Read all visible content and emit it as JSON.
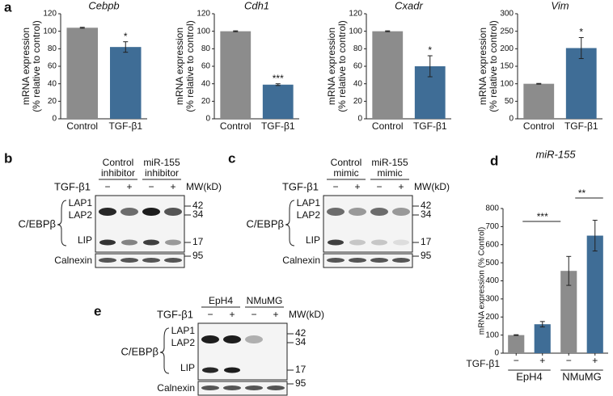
{
  "chart_data": [
    {
      "type": "bar",
      "panel": "a",
      "title": "Cebpb",
      "ylabel": [
        "mRNA expression",
        "(% relative to control)"
      ],
      "categories": [
        "Control",
        "TGF-β1"
      ],
      "values": [
        104,
        82
      ],
      "errors": [
        0.5,
        6
      ],
      "colors": [
        "#8c8c8c",
        "#3f6d96"
      ],
      "ylim": [
        0,
        120
      ],
      "yticks": [
        0,
        20,
        40,
        60,
        80,
        100,
        120
      ],
      "significance": "*"
    },
    {
      "type": "bar",
      "title": "Cdh1",
      "ylabel": [
        "mRNA expression",
        "(% relative to control)"
      ],
      "categories": [
        "Control",
        "TGF-β1"
      ],
      "values": [
        100,
        39
      ],
      "errors": [
        0.5,
        1
      ],
      "colors": [
        "#8c8c8c",
        "#3f6d96"
      ],
      "ylim": [
        0,
        120
      ],
      "yticks": [
        0,
        20,
        40,
        60,
        80,
        100,
        120
      ],
      "significance": "***"
    },
    {
      "type": "bar",
      "title": "Cxadr",
      "ylabel": [
        "mRNA expression",
        "(% relative to control)"
      ],
      "categories": [
        "Control",
        "TGF-β1"
      ],
      "values": [
        100,
        60
      ],
      "errors": [
        0.5,
        12
      ],
      "colors": [
        "#8c8c8c",
        "#3f6d96"
      ],
      "ylim": [
        0,
        120
      ],
      "yticks": [
        0,
        20,
        40,
        60,
        80,
        100,
        120
      ],
      "significance": "*"
    },
    {
      "type": "bar",
      "title": "Vim",
      "ylabel": [
        "mRNA expression",
        "(% relative to control)"
      ],
      "categories": [
        "Control",
        "TGF-β1"
      ],
      "values": [
        100,
        202
      ],
      "errors": [
        1,
        30
      ],
      "colors": [
        "#8c8c8c",
        "#3f6d96"
      ],
      "ylim": [
        0,
        300
      ],
      "yticks": [
        0,
        50,
        100,
        150,
        200,
        250,
        300
      ],
      "significance": "*"
    },
    {
      "type": "bar",
      "panel": "d",
      "title": "miR-155",
      "ylabel": [
        "mRNA expression (% Control)"
      ],
      "xlabel": "TGF-β1",
      "categories": [
        "−",
        "+",
        "−",
        "+"
      ],
      "groups": [
        "EpH4",
        "NMuMG"
      ],
      "values": [
        100,
        160,
        455,
        650
      ],
      "errors": [
        2,
        15,
        80,
        85
      ],
      "colors": [
        "#8c8c8c",
        "#3f6d96",
        "#8c8c8c",
        "#3f6d96"
      ],
      "ylim": [
        0,
        800
      ],
      "yticks": [
        0,
        100,
        200,
        300,
        400,
        500,
        600,
        700,
        800
      ],
      "significance": [
        "***",
        "**"
      ]
    }
  ],
  "blots": [
    {
      "panel": "b",
      "groups": [
        [
          "Control",
          "inhibitor"
        ],
        [
          "miR-155",
          "inhibitor"
        ]
      ],
      "treatment": "TGF-β1",
      "signs": [
        "−",
        "+",
        "−",
        "+"
      ],
      "mw": "MW(kD)",
      "protein": "C/EBPβ",
      "isoforms": [
        "LAP1",
        "LAP2",
        "LIP"
      ],
      "markers": [
        "42",
        "34",
        "17"
      ],
      "loading": "Calnexin",
      "loading_marker": "95"
    },
    {
      "panel": "c",
      "groups": [
        [
          "Control",
          "mimic"
        ],
        [
          "miR-155",
          "mimic"
        ]
      ],
      "treatment": "TGF-β1",
      "signs": [
        "−",
        "+",
        "−",
        "+"
      ],
      "mw": "MW(kD)",
      "protein": "C/EBPβ",
      "isoforms": [
        "LAP1",
        "LAP2",
        "LIP"
      ],
      "markers": [
        "42",
        "34",
        "17"
      ],
      "loading": "Calnexin",
      "loading_marker": "95"
    },
    {
      "panel": "e",
      "groups": [
        [
          "EpH4"
        ],
        [
          "NMuMG"
        ]
      ],
      "treatment": "TGF-β1",
      "signs": [
        "−",
        "+",
        "−",
        "+"
      ],
      "mw": "MW(kD)",
      "protein": "C/EBPβ",
      "isoforms": [
        "LAP1",
        "LAP2",
        "LIP"
      ],
      "markers": [
        "42",
        "34",
        "17"
      ],
      "loading": "Calnexin",
      "loading_marker": "95"
    }
  ]
}
